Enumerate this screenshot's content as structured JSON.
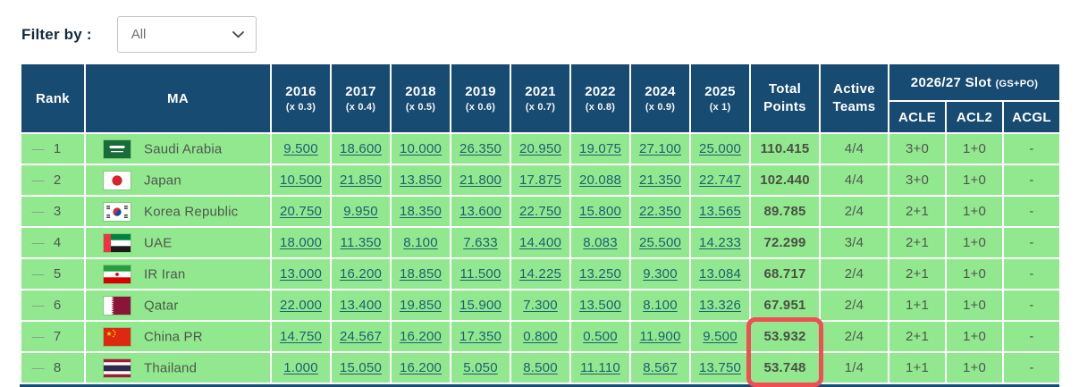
{
  "filter": {
    "label": "Filter by :",
    "selected": "All"
  },
  "table": {
    "headers": {
      "rank": "Rank",
      "ma": "MA",
      "years": [
        {
          "year": "2016",
          "mult": "(x 0.3)"
        },
        {
          "year": "2017",
          "mult": "(x 0.4)"
        },
        {
          "year": "2018",
          "mult": "(x 0.5)"
        },
        {
          "year": "2019",
          "mult": "(x 0.6)"
        },
        {
          "year": "2021",
          "mult": "(x 0.7)"
        },
        {
          "year": "2022",
          "mult": "(x 0.8)"
        },
        {
          "year": "2024",
          "mult": "(x 0.9)"
        },
        {
          "year": "2025",
          "mult": "(x 1)"
        }
      ],
      "total": "Total Points",
      "active": "Active Teams",
      "slot_group": "2026/27 Slot",
      "slot_group_suffix": "(GS+PO)",
      "slots": [
        "ACLE",
        "ACL2",
        "ACGL"
      ]
    },
    "rows": [
      {
        "trend": "—",
        "rank": "1",
        "flag": "saudi-arabia",
        "country": "Saudi Arabia",
        "points": [
          "9.500",
          "18.600",
          "10.000",
          "26.350",
          "20.950",
          "19.075",
          "27.100",
          "25.000"
        ],
        "total": "110.415",
        "active": "4/4",
        "acle": "3+0",
        "acl2": "1+0",
        "acgl": "-",
        "highlight": false
      },
      {
        "trend": "—",
        "rank": "2",
        "flag": "japan",
        "country": "Japan",
        "points": [
          "10.500",
          "21.850",
          "13.850",
          "21.800",
          "17.875",
          "20.088",
          "21.350",
          "22.747"
        ],
        "total": "102.440",
        "active": "4/4",
        "acle": "3+0",
        "acl2": "1+0",
        "acgl": "-",
        "highlight": false
      },
      {
        "trend": "—",
        "rank": "3",
        "flag": "korea-republic",
        "country": "Korea Republic",
        "points": [
          "20.750",
          "9.950",
          "18.350",
          "13.600",
          "22.750",
          "15.800",
          "22.350",
          "13.565"
        ],
        "total": "89.785",
        "active": "2/4",
        "acle": "2+1",
        "acl2": "1+0",
        "acgl": "-",
        "highlight": false
      },
      {
        "trend": "—",
        "rank": "4",
        "flag": "uae",
        "country": "UAE",
        "points": [
          "18.000",
          "11.350",
          "8.100",
          "7.633",
          "14.400",
          "8.083",
          "25.500",
          "14.233"
        ],
        "total": "72.299",
        "active": "3/4",
        "acle": "2+1",
        "acl2": "1+0",
        "acgl": "-",
        "highlight": false
      },
      {
        "trend": "—",
        "rank": "5",
        "flag": "ir-iran",
        "country": "IR Iran",
        "points": [
          "13.000",
          "16.200",
          "18.850",
          "11.500",
          "14.225",
          "13.250",
          "9.300",
          "13.084"
        ],
        "total": "68.717",
        "active": "2/4",
        "acle": "2+1",
        "acl2": "1+0",
        "acgl": "-",
        "highlight": false
      },
      {
        "trend": "—",
        "rank": "6",
        "flag": "qatar",
        "country": "Qatar",
        "points": [
          "22.000",
          "13.400",
          "19.850",
          "15.900",
          "7.300",
          "13.500",
          "8.100",
          "13.326"
        ],
        "total": "67.951",
        "active": "2/4",
        "acle": "1+1",
        "acl2": "1+0",
        "acgl": "-",
        "highlight": false
      },
      {
        "trend": "—",
        "rank": "7",
        "flag": "china-pr",
        "country": "China PR",
        "points": [
          "14.750",
          "24.567",
          "16.200",
          "17.350",
          "0.800",
          "0.500",
          "11.900",
          "9.500"
        ],
        "total": "53.932",
        "active": "2/4",
        "acle": "2+1",
        "acl2": "1+0",
        "acgl": "-",
        "highlight": true
      },
      {
        "trend": "—",
        "rank": "8",
        "flag": "thailand",
        "country": "Thailand",
        "points": [
          "1.000",
          "15.050",
          "16.200",
          "5.050",
          "8.500",
          "11.110",
          "8.567",
          "13.750"
        ],
        "total": "53.748",
        "active": "1/4",
        "acle": "1+1",
        "acl2": "1+0",
        "acgl": "-",
        "highlight": true
      }
    ]
  },
  "colors": {
    "header_bg": "#174b72",
    "row_bg": "#92e88f",
    "link": "#1d5f70",
    "text": "#4e584d",
    "total_text": "#4a5142",
    "highlight": "#ef4e53",
    "trend": "#8f9a94",
    "filter_label": "#13293d"
  }
}
